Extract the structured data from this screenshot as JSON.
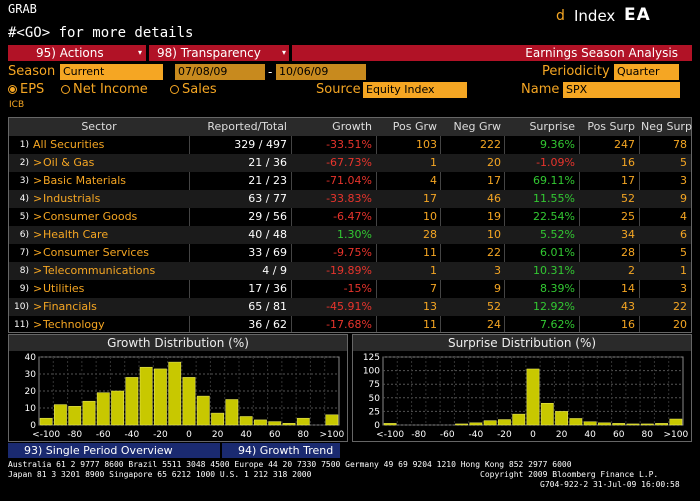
{
  "header": {
    "grab": "GRAB",
    "go_hint": "#<GO> for more details",
    "d_label": "d",
    "index_label": "Index",
    "function_code": "EA"
  },
  "toolbar": {
    "actions": "95) Actions",
    "transparency": "98) Transparency",
    "screen_title": "Earnings Season Analysis"
  },
  "filters": {
    "season_label": "Season",
    "season_value": "Current",
    "start_date": "07/08/09",
    "dash": "-",
    "end_date": "10/06/09",
    "periodicity_label": "Periodicity",
    "periodicity_value": "Quarter",
    "metric_options": [
      "EPS",
      "Net Income",
      "Sales"
    ],
    "metric_selected": "EPS",
    "source_label": "Source",
    "source_value": "Equity Index",
    "name_label": "Name",
    "name_value": "SPX",
    "classification": "ICB"
  },
  "table": {
    "headers": [
      "Sector",
      "Reported/Total",
      "Growth",
      "Pos Grw",
      "Neg Grw",
      "Surprise",
      "Pos Surp",
      "Neg Surp"
    ],
    "rows": [
      {
        "num": "1)",
        "sector": "All Securities",
        "expand": false,
        "reported": "329 / 497",
        "growth": "-33.51%",
        "pos_grw": "103",
        "neg_grw": "222",
        "surprise": "9.36%",
        "pos_surp": "247",
        "neg_surp": "78"
      },
      {
        "num": "2)",
        "sector": "Oil & Gas",
        "expand": true,
        "reported": "21 / 36",
        "growth": "-67.73%",
        "pos_grw": "1",
        "neg_grw": "20",
        "surprise": "-1.09%",
        "pos_surp": "16",
        "neg_surp": "5"
      },
      {
        "num": "3)",
        "sector": "Basic Materials",
        "expand": true,
        "reported": "21 / 23",
        "growth": "-71.04%",
        "pos_grw": "4",
        "neg_grw": "17",
        "surprise": "69.11%",
        "pos_surp": "17",
        "neg_surp": "3"
      },
      {
        "num": "4)",
        "sector": "Industrials",
        "expand": true,
        "reported": "63 / 77",
        "growth": "-33.83%",
        "pos_grw": "17",
        "neg_grw": "46",
        "surprise": "11.55%",
        "pos_surp": "52",
        "neg_surp": "9"
      },
      {
        "num": "5)",
        "sector": "Consumer Goods",
        "expand": true,
        "reported": "29 / 56",
        "growth": "-6.47%",
        "pos_grw": "10",
        "neg_grw": "19",
        "surprise": "22.54%",
        "pos_surp": "25",
        "neg_surp": "4"
      },
      {
        "num": "6)",
        "sector": "Health Care",
        "expand": true,
        "reported": "40 / 48",
        "growth": "1.30%",
        "pos_grw": "28",
        "neg_grw": "10",
        "surprise": "5.52%",
        "pos_surp": "34",
        "neg_surp": "6"
      },
      {
        "num": "7)",
        "sector": "Consumer Services",
        "expand": true,
        "reported": "33 / 69",
        "growth": "-9.75%",
        "pos_grw": "11",
        "neg_grw": "22",
        "surprise": "6.01%",
        "pos_surp": "28",
        "neg_surp": "5"
      },
      {
        "num": "8)",
        "sector": "Telecommunications",
        "expand": true,
        "reported": "4 / 9",
        "growth": "-19.89%",
        "pos_grw": "1",
        "neg_grw": "3",
        "surprise": "10.31%",
        "pos_surp": "2",
        "neg_surp": "1"
      },
      {
        "num": "9)",
        "sector": "Utilities",
        "expand": true,
        "reported": "17 / 36",
        "growth": "-15%",
        "pos_grw": "7",
        "neg_grw": "9",
        "surprise": "8.39%",
        "pos_surp": "14",
        "neg_surp": "3"
      },
      {
        "num": "10)",
        "sector": "Financials",
        "expand": true,
        "reported": "65 / 81",
        "growth": "-45.91%",
        "pos_grw": "13",
        "neg_grw": "52",
        "surprise": "12.92%",
        "pos_surp": "43",
        "neg_surp": "22"
      },
      {
        "num": "11)",
        "sector": "Technology",
        "expand": true,
        "reported": "36 / 62",
        "growth": "-17.68%",
        "pos_grw": "11",
        "neg_grw": "24",
        "surprise": "7.62%",
        "pos_surp": "16",
        "neg_surp": "20"
      }
    ]
  },
  "chart_data": [
    {
      "type": "bar",
      "title": "Growth Distribution (%)",
      "categories": [
        "<-100",
        "",
        "-80",
        "",
        "-60",
        "",
        "-40",
        "",
        "-20",
        "",
        "0",
        "",
        "20",
        "",
        "40",
        "",
        "60",
        "",
        "80",
        "",
        "100+"
      ],
      "tick_labels": [
        "<-100",
        "-80",
        "-60",
        "-40",
        "-20",
        "0",
        "20",
        "40",
        "60",
        "80",
        ">100"
      ],
      "values": [
        4,
        12,
        11,
        14,
        19,
        20,
        28,
        34,
        33,
        37,
        28,
        17,
        7,
        15,
        5,
        3,
        2,
        1,
        4,
        0,
        6
      ],
      "ylim": [
        0,
        40
      ],
      "yticks": [
        0,
        10,
        20,
        30,
        40
      ],
      "grid": true,
      "bar_color": "#c8c800"
    },
    {
      "type": "bar",
      "title": "Surprise Distribution (%)",
      "categories": [
        "<-100",
        "",
        "-80",
        "",
        "-60",
        "",
        "-40",
        "",
        "-20",
        "",
        "0",
        "",
        "20",
        "",
        "40",
        "",
        "60",
        "",
        "80",
        "",
        "100+"
      ],
      "tick_labels": [
        "<-100",
        "-80",
        "-60",
        "-40",
        "-20",
        "0",
        "20",
        "40",
        "60",
        "80",
        ">100"
      ],
      "values": [
        3,
        0,
        0,
        0,
        0,
        2,
        4,
        8,
        10,
        20,
        103,
        40,
        25,
        12,
        6,
        4,
        3,
        2,
        2,
        3,
        11
      ],
      "ylim": [
        0,
        125
      ],
      "yticks": [
        0,
        25,
        50,
        75,
        100,
        125
      ],
      "grid": true,
      "bar_color": "#c8c800"
    }
  ],
  "bottom_tabs": {
    "single_period": "93) Single Period Overview",
    "growth_trend": "94) Growth Trend"
  },
  "footer": {
    "line1": "Australia 61 2 9777 8600 Brazil 5511 3048 4500 Europe 44 20 7330 7500 Germany 49 69 9204 1210 Hong Kong 852 2977 6000",
    "line2_left": "Japan 81 3 3201 8900           Singapore 65 6212 1000         U.S. 1 212 318 2000",
    "line2_right": "Copyright 2009 Bloomberg Finance L.P.",
    "line3": "G704-922-2 31-Jul-09 16:00:58"
  },
  "colors": {
    "amber": "#f5a623",
    "red_button": "#b11226",
    "positive": "#32c832",
    "negative": "#e8342c",
    "bar": "#c8c800"
  }
}
